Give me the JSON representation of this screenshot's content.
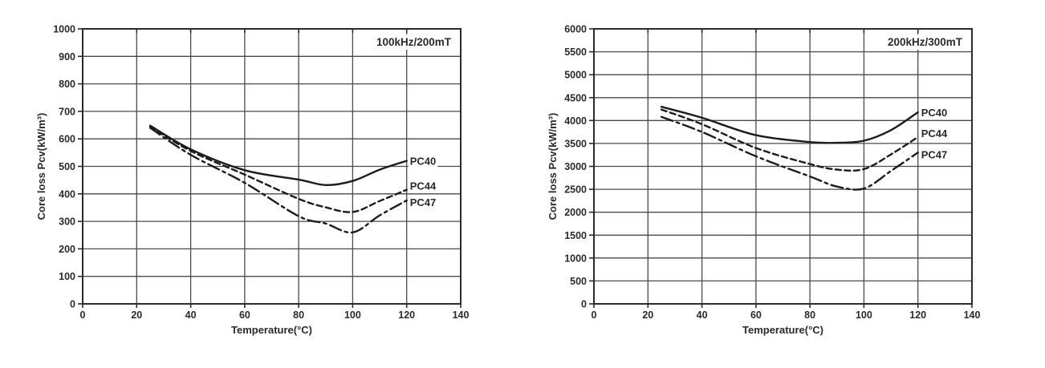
{
  "page": {
    "background": "#ffffff",
    "text_color": "#2a2a2a",
    "curve_color": "#1c1c1c",
    "grid_color": "#4a4a4a",
    "border_color": "#2b2b2b"
  },
  "chart_data": [
    {
      "type": "line",
      "title": "100kHz/200mT",
      "xlabel": "Temperature(°C)",
      "ylabel": "Core loss Pcv(kW/m³)",
      "xlim": [
        0,
        140
      ],
      "ylim": [
        0,
        1000
      ],
      "x_ticks": [
        0,
        20,
        40,
        60,
        80,
        100,
        120,
        140
      ],
      "y_ticks": [
        0,
        100,
        200,
        300,
        400,
        500,
        600,
        700,
        800,
        900,
        1000
      ],
      "grid": true,
      "legend_position": "inline-right",
      "x": [
        25,
        40,
        60,
        80,
        90,
        100,
        110,
        120
      ],
      "series": [
        {
          "name": "PC40",
          "line_style": "solid",
          "values": [
            648,
            562,
            486,
            452,
            432,
            447,
            488,
            520
          ]
        },
        {
          "name": "PC44",
          "line_style": "dashed",
          "values": [
            645,
            556,
            470,
            382,
            351,
            334,
            374,
            415
          ]
        },
        {
          "name": "PC47",
          "line_style": "dash-dot",
          "values": [
            640,
            542,
            440,
            319,
            292,
            260,
            322,
            376
          ]
        }
      ]
    },
    {
      "type": "line",
      "title": "200kHz/300mT",
      "xlabel": "Temperature(°C)",
      "ylabel": "Core loss Pcv(kW/m³)",
      "xlim": [
        0,
        140
      ],
      "ylim": [
        0,
        6000
      ],
      "x_ticks": [
        0,
        20,
        40,
        60,
        80,
        100,
        120,
        140
      ],
      "y_ticks": [
        0,
        500,
        1000,
        1500,
        2000,
        2500,
        3000,
        3500,
        4000,
        4500,
        5000,
        5500,
        6000
      ],
      "grid": true,
      "legend_position": "inline-right",
      "x": [
        25,
        40,
        60,
        80,
        90,
        100,
        110,
        120
      ],
      "series": [
        {
          "name": "PC40",
          "line_style": "solid",
          "values": [
            4300,
            4060,
            3680,
            3530,
            3515,
            3560,
            3790,
            4180
          ]
        },
        {
          "name": "PC44",
          "line_style": "dashed",
          "values": [
            4240,
            3920,
            3400,
            3050,
            2930,
            2940,
            3260,
            3640
          ]
        },
        {
          "name": "PC47",
          "line_style": "dash-dot",
          "values": [
            4080,
            3750,
            3220,
            2780,
            2560,
            2515,
            2900,
            3300
          ]
        }
      ]
    }
  ]
}
